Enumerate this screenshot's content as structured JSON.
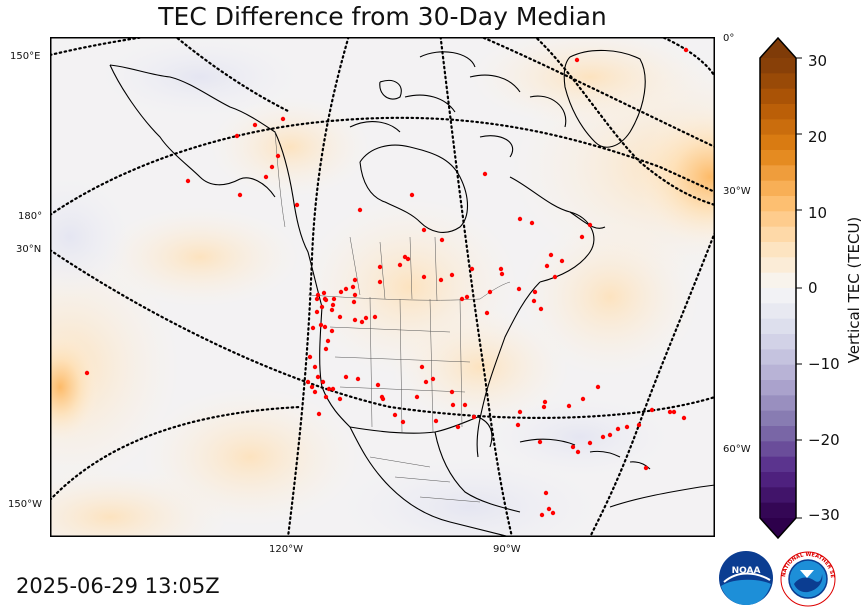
{
  "title": "TEC Difference from 30-Day Median",
  "timestamp": "2025-06-29 13:05Z",
  "map": {
    "graticule_labels": {
      "left": [
        "150°E",
        "180°",
        "30°N",
        "150°W"
      ],
      "right": [
        "0°",
        "30°W",
        "60°W"
      ],
      "bottom": [
        "120°W",
        "90°W"
      ]
    },
    "station_marker_color": "#ff0000",
    "land_outline_color": "#000000"
  },
  "colorbar": {
    "label": "Vertical TEC (TECU)",
    "ticks": [
      "30",
      "20",
      "10",
      "0",
      "−10",
      "−20",
      "−30"
    ],
    "range": [
      -30,
      30
    ],
    "extend": "both",
    "colormap": [
      "#2d004b",
      "#542788",
      "#8073ac",
      "#b2abd2",
      "#d8daeb",
      "#f7f7f7",
      "#fee0b6",
      "#fdb863",
      "#e08214",
      "#b35806",
      "#7f3b08"
    ]
  },
  "logos": {
    "noaa": "NOAA",
    "nws_ring": "NATIONAL WEATHER SERVICE"
  }
}
